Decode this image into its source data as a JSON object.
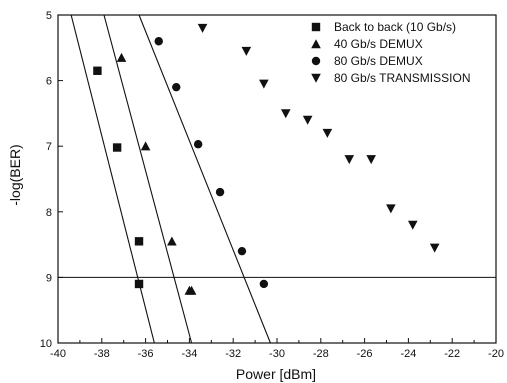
{
  "chart_data": {
    "type": "scatter",
    "xlabel": "Power [dBm]",
    "ylabel": "-log(BER)",
    "xlim": [
      -40,
      -20
    ],
    "ylim": [
      5,
      10
    ],
    "y_inverted": true,
    "x_ticks": [
      -40,
      -38,
      -36,
      -34,
      -32,
      -30,
      -28,
      -26,
      -24,
      -22,
      -20
    ],
    "y_ticks": [
      5,
      6,
      7,
      8,
      9,
      10
    ],
    "reference_line_y": 9,
    "legend_position": "top-right",
    "grid": false,
    "series": [
      {
        "name": "Back to back (10 Gb/s)",
        "marker": "square",
        "points": [
          [
            -38.2,
            5.85
          ],
          [
            -37.3,
            7.02
          ],
          [
            -36.3,
            8.45
          ],
          [
            -36.3,
            9.1
          ]
        ],
        "fit_line": [
          [
            -39.4,
            5.0
          ],
          [
            -35.6,
            10.0
          ]
        ]
      },
      {
        "name": "40 Gb/s DEMUX",
        "marker": "triangle-up",
        "points": [
          [
            -37.1,
            5.65
          ],
          [
            -36.0,
            7.0
          ],
          [
            -34.8,
            8.45
          ],
          [
            -34.0,
            9.2
          ],
          [
            -33.9,
            9.2
          ]
        ],
        "fit_line": [
          [
            -37.9,
            5.0
          ],
          [
            -33.9,
            10.0
          ]
        ]
      },
      {
        "name": "80 Gb/s DEMUX",
        "marker": "circle",
        "points": [
          [
            -35.4,
            5.4
          ],
          [
            -34.6,
            6.1
          ],
          [
            -33.6,
            6.97
          ],
          [
            -32.6,
            7.7
          ],
          [
            -31.6,
            8.6
          ],
          [
            -30.6,
            9.1
          ]
        ],
        "fit_line": [
          [
            -36.3,
            5.0
          ],
          [
            -30.3,
            10.0
          ]
        ]
      },
      {
        "name": "80 Gb/s TRANSMISSION",
        "marker": "triangle-down",
        "points": [
          [
            -33.4,
            5.2
          ],
          [
            -31.4,
            5.55
          ],
          [
            -30.6,
            6.05
          ],
          [
            -29.6,
            6.5
          ],
          [
            -28.6,
            6.6
          ],
          [
            -27.7,
            6.8
          ],
          [
            -26.7,
            7.2
          ],
          [
            -25.7,
            7.2
          ],
          [
            -24.8,
            7.95
          ],
          [
            -23.8,
            8.2
          ],
          [
            -22.8,
            8.55
          ]
        ]
      }
    ]
  }
}
